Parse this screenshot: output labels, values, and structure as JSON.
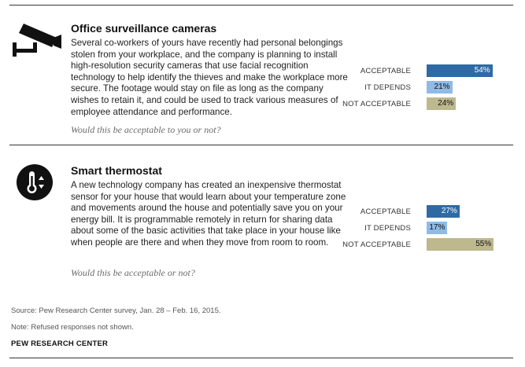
{
  "panels": [
    {
      "icon": "surveillance-camera-icon",
      "title": "Office surveillance cameras",
      "description": "Several co-workers of yours have recently had personal belongings stolen from your workplace, and the company is planning to install high-resolution security cameras that use facial recognition technology to help identify the thieves and make the workplace more secure. The footage would stay on file as long as the company wishes to retain it, and could be used to track various measures of employee attendance and performance.",
      "question": "Would this be acceptable to you or not?"
    },
    {
      "icon": "thermometer-icon",
      "title": "Smart thermostat",
      "description": "A new technology company has created an inexpensive thermostat sensor for your house that would learn about your temperature zone and movements around the house and potentially save you on your energy bill. It is programmable remotely in return for sharing data about some of the basic activities that take place in your house like when people are there and when they move from room to room.",
      "question": "Would this be acceptable or not?"
    }
  ],
  "chart_data": [
    {
      "type": "bar",
      "orientation": "horizontal",
      "categories": [
        "ACCEPTABLE",
        "IT DEPENDS",
        "NOT ACCEPTABLE"
      ],
      "values": [
        54,
        21,
        24
      ],
      "labels": [
        "54%",
        "21%",
        "24%"
      ],
      "colors": [
        "#2f6aa4",
        "#8fbbe6",
        "#bdb88e"
      ],
      "xlim": [
        0,
        100
      ]
    },
    {
      "type": "bar",
      "orientation": "horizontal",
      "categories": [
        "ACCEPTABLE",
        "IT DEPENDS",
        "NOT ACCEPTABLE"
      ],
      "values": [
        27,
        17,
        55
      ],
      "labels": [
        "27%",
        "17%",
        "55%"
      ],
      "colors": [
        "#2f6aa4",
        "#8fbbe6",
        "#bdb88e"
      ],
      "xlim": [
        0,
        100
      ]
    }
  ],
  "footer": {
    "source": "Source: Pew Research Center survey, Jan. 28 – Feb. 16, 2015.",
    "note": "Note: Refused responses not shown.",
    "brand": "PEW RESEARCH CENTER"
  }
}
